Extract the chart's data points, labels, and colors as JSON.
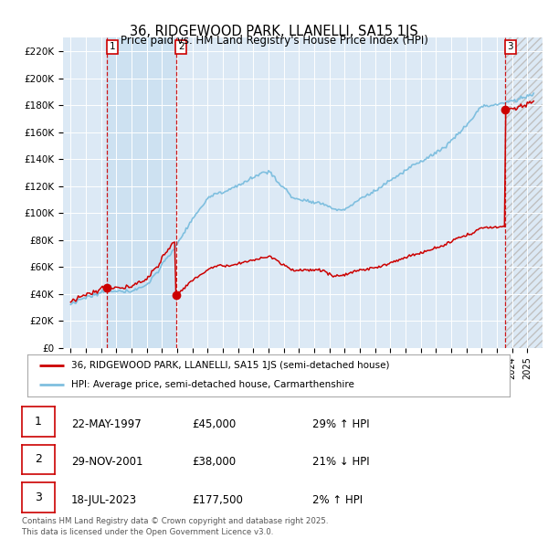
{
  "title": "36, RIDGEWOOD PARK, LLANELLI, SA15 1JS",
  "subtitle": "Price paid vs. HM Land Registry's House Price Index (HPI)",
  "bg_color": "#dce9f5",
  "plot_bg_color": "#dce9f5",
  "ylim": [
    0,
    230000
  ],
  "yticks": [
    0,
    20000,
    40000,
    60000,
    80000,
    100000,
    120000,
    140000,
    160000,
    180000,
    200000,
    220000
  ],
  "ytick_labels": [
    "£0",
    "£20K",
    "£40K",
    "£60K",
    "£80K",
    "£100K",
    "£120K",
    "£140K",
    "£160K",
    "£180K",
    "£200K",
    "£220K"
  ],
  "hpi_color": "#7fbfdf",
  "price_color": "#cc0000",
  "vline_color": "#cc0000",
  "shade_color": "#c8dff0",
  "transactions": [
    {
      "date_num": 1997.38,
      "price": 45000,
      "label": "1"
    },
    {
      "date_num": 2001.91,
      "price": 38000,
      "label": "2"
    },
    {
      "date_num": 2023.54,
      "price": 177500,
      "label": "3"
    }
  ],
  "legend_entries": [
    "36, RIDGEWOOD PARK, LLANELLI, SA15 1JS (semi-detached house)",
    "HPI: Average price, semi-detached house, Carmarthenshire"
  ],
  "table_data": [
    [
      "1",
      "22-MAY-1997",
      "£45,000",
      "29% ↑ HPI"
    ],
    [
      "2",
      "29-NOV-2001",
      "£38,000",
      "21% ↓ HPI"
    ],
    [
      "3",
      "18-JUL-2023",
      "£177,500",
      "2% ↑ HPI"
    ]
  ],
  "footer": "Contains HM Land Registry data © Crown copyright and database right 2025.\nThis data is licensed under the Open Government Licence v3.0.",
  "xmin": 1994.5,
  "xmax": 2026.0
}
